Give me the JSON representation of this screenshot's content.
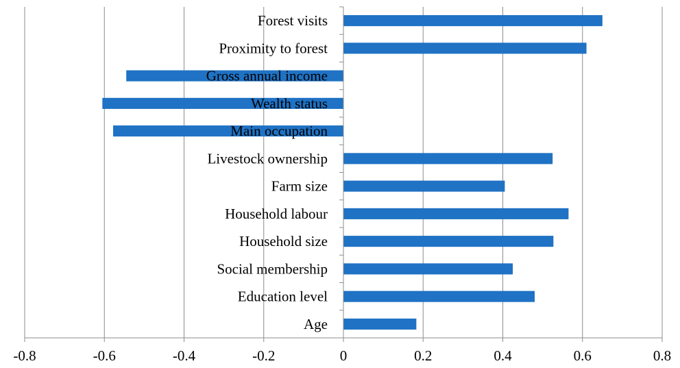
{
  "chart_data": {
    "type": "bar",
    "orientation": "horizontal",
    "title": "",
    "xlabel": "",
    "ylabel": "",
    "xlim": [
      -0.8,
      0.8
    ],
    "x_ticks": [
      -0.8,
      -0.6,
      -0.4,
      -0.2,
      0,
      0.2,
      0.4,
      0.6,
      0.8
    ],
    "tick_labels": [
      "-0.8",
      "-0.6",
      "-0.4",
      "-0.2",
      "0",
      "0.2",
      "0.4",
      "0.6",
      "0.8"
    ],
    "grid": "vertical",
    "legend": "none",
    "bar_color": "#1f72c4",
    "categories": [
      "Forest visits",
      "Proximity to forest",
      "Gross annual income",
      "Wealth status",
      "Main occupation",
      "Livestock ownership",
      "Farm size",
      "Household labour",
      "Household size",
      "Social membership",
      "Education level",
      "Age"
    ],
    "values": [
      0.65,
      0.61,
      -0.545,
      -0.605,
      -0.578,
      0.525,
      0.405,
      0.565,
      0.527,
      0.425,
      0.48,
      0.183
    ]
  }
}
